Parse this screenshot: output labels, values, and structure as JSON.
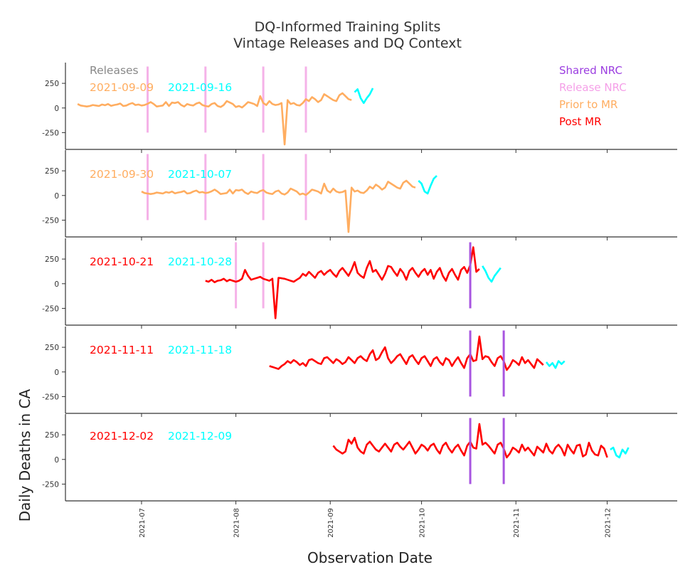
{
  "title_line1": "DQ-Informed Training Splits",
  "title_line2": "Vintage Releases and DQ Context",
  "ylabel": "Daily Deaths in CA",
  "xlabel": "Observation Date",
  "releases_heading": "Releases",
  "colors": {
    "prior": "#ffad60",
    "post": "#ff0000",
    "forecast": "#00ffff",
    "release_nrc": "#f5b2e8",
    "shared_nrc": "#a855e0",
    "heading": "#888888"
  },
  "legend": [
    {
      "label": "Shared NRC",
      "color": "#9b3de0"
    },
    {
      "label": "Release NRC",
      "color": "#f5a0e8"
    },
    {
      "label": "Prior to MR",
      "color": "#ffad60"
    },
    {
      "label": "Post MR",
      "color": "#ff0000"
    }
  ],
  "panels": [
    {
      "train_label": "2021-09-09",
      "test_label": "2021-09-16",
      "train_color": "#ffad60"
    },
    {
      "train_label": "2021-09-30",
      "test_label": "2021-10-07",
      "train_color": "#ffad60"
    },
    {
      "train_label": "2021-10-21",
      "test_label": "2021-10-28",
      "train_color": "#ff0000"
    },
    {
      "train_label": "2021-11-11",
      "test_label": "2021-11-18",
      "train_color": "#ff0000"
    },
    {
      "train_label": "2021-12-02",
      "test_label": "2021-12-09",
      "train_color": "#ff0000"
    }
  ],
  "chart_data": {
    "type": "line",
    "x_axis": {
      "type": "date",
      "range": [
        "2021-06-06",
        "2021-12-24"
      ],
      "ticks": [
        "2021-07",
        "2021-08",
        "2021-09",
        "2021-10",
        "2021-11",
        "2021-12"
      ],
      "tick_dates": [
        "2021-07-01",
        "2021-08-01",
        "2021-09-01",
        "2021-10-01",
        "2021-11-01",
        "2021-12-01"
      ]
    },
    "y_axis": {
      "ticks": [
        250,
        0,
        -250
      ],
      "range": [
        -420,
        460
      ]
    },
    "panels": [
      {
        "train_start": "2021-06-10",
        "train_end": "2021-09-08",
        "train_values": [
          40,
          25,
          20,
          15,
          20,
          30,
          25,
          20,
          35,
          28,
          40,
          22,
          30,
          35,
          45,
          20,
          25,
          40,
          50,
          30,
          35,
          25,
          30,
          42,
          60,
          40,
          15,
          20,
          25,
          60,
          20,
          55,
          50,
          60,
          30,
          15,
          40,
          30,
          25,
          45,
          55,
          30,
          20,
          15,
          40,
          50,
          20,
          10,
          30,
          70,
          55,
          40,
          10,
          20,
          5,
          30,
          60,
          50,
          40,
          20,
          120,
          50,
          30,
          70,
          40,
          30,
          35,
          50,
          -370,
          80,
          40,
          50,
          30,
          25,
          50,
          90,
          70,
          110,
          90,
          60,
          80,
          140,
          120,
          100,
          80,
          70,
          130,
          150,
          120,
          90,
          80
        ],
        "test_start": "2021-09-09",
        "test_end": "2021-09-15",
        "test_values": [
          160,
          190,
          100,
          50,
          100,
          140,
          200
        ],
        "release_nrc": [
          "2021-07-03",
          "2021-07-22",
          "2021-08-10",
          "2021-08-24"
        ],
        "shared_nrc": []
      },
      {
        "train_start": "2021-07-01",
        "train_end": "2021-09-29",
        "train_values": [
          40,
          25,
          20,
          15,
          20,
          30,
          25,
          20,
          35,
          28,
          40,
          22,
          30,
          35,
          45,
          20,
          25,
          40,
          50,
          30,
          35,
          25,
          30,
          42,
          60,
          40,
          15,
          20,
          25,
          60,
          20,
          55,
          50,
          60,
          30,
          15,
          40,
          30,
          25,
          45,
          55,
          30,
          20,
          15,
          40,
          50,
          20,
          10,
          30,
          70,
          55,
          40,
          10,
          20,
          5,
          30,
          60,
          50,
          40,
          20,
          120,
          50,
          30,
          70,
          40,
          30,
          35,
          50,
          -370,
          80,
          40,
          50,
          30,
          25,
          50,
          90,
          70,
          110,
          90,
          60,
          80,
          140,
          120,
          100,
          80,
          70,
          130,
          150,
          120,
          90,
          80
        ],
        "test_start": "2021-09-30",
        "test_end": "2021-10-06",
        "test_values": [
          150,
          120,
          40,
          20,
          100,
          170,
          200
        ],
        "release_nrc": [
          "2021-07-03",
          "2021-07-22",
          "2021-08-10",
          "2021-08-24"
        ],
        "shared_nrc": []
      },
      {
        "train_start": "2021-07-22",
        "train_end": "2021-10-20",
        "train_values": [
          30,
          20,
          40,
          15,
          30,
          35,
          50,
          25,
          40,
          30,
          20,
          30,
          50,
          140,
          80,
          40,
          50,
          60,
          70,
          50,
          40,
          30,
          50,
          -350,
          60,
          55,
          50,
          40,
          30,
          20,
          40,
          60,
          100,
          80,
          120,
          90,
          60,
          110,
          130,
          90,
          120,
          140,
          100,
          70,
          130,
          160,
          120,
          80,
          140,
          220,
          110,
          80,
          60,
          160,
          230,
          120,
          140,
          90,
          40,
          100,
          180,
          170,
          120,
          80,
          150,
          110,
          40,
          130,
          160,
          110,
          70,
          120,
          150,
          90,
          140,
          50,
          120,
          160,
          80,
          30,
          110,
          150,
          90,
          40,
          140,
          170,
          110,
          190,
          370,
          120,
          150
        ],
        "test_start": "2021-10-21",
        "test_end": "2021-10-27",
        "test_values": [
          180,
          130,
          60,
          20,
          80,
          120,
          160
        ],
        "release_nrc": [
          "2021-08-01",
          "2021-08-10"
        ],
        "shared_nrc": [
          "2021-10-17"
        ]
      },
      {
        "train_start": "2021-08-12",
        "train_end": "2021-11-10",
        "train_values": [
          60,
          50,
          40,
          30,
          60,
          80,
          110,
          90,
          120,
          100,
          70,
          90,
          60,
          120,
          130,
          110,
          90,
          80,
          140,
          150,
          120,
          90,
          130,
          110,
          80,
          100,
          150,
          120,
          90,
          140,
          160,
          130,
          110,
          180,
          220,
          120,
          140,
          200,
          250,
          140,
          90,
          120,
          160,
          180,
          130,
          80,
          150,
          170,
          120,
          80,
          140,
          160,
          110,
          60,
          130,
          150,
          100,
          70,
          140,
          120,
          60,
          110,
          150,
          90,
          40,
          140,
          180,
          110,
          120,
          360,
          130,
          160,
          150,
          100,
          60,
          140,
          160,
          110,
          20,
          60,
          120,
          100,
          70,
          150,
          90,
          120,
          80,
          40,
          130,
          100,
          70
        ],
        "test_start": "2021-11-11",
        "test_end": "2021-11-17",
        "test_values": [
          100,
          60,
          90,
          40,
          110,
          80,
          110
        ],
        "release_nrc": [],
        "shared_nrc": [
          "2021-10-17",
          "2021-10-28"
        ]
      },
      {
        "train_start": "2021-09-02",
        "train_end": "2021-12-01",
        "train_values": [
          140,
          100,
          80,
          60,
          80,
          200,
          160,
          220,
          120,
          80,
          60,
          150,
          180,
          140,
          100,
          80,
          120,
          160,
          120,
          80,
          150,
          170,
          130,
          100,
          140,
          180,
          120,
          60,
          100,
          150,
          130,
          90,
          140,
          160,
          100,
          60,
          140,
          170,
          110,
          70,
          120,
          150,
          90,
          40,
          140,
          180,
          120,
          110,
          360,
          150,
          170,
          140,
          100,
          60,
          150,
          170,
          110,
          20,
          60,
          120,
          100,
          70,
          150,
          90,
          120,
          80,
          40,
          130,
          100,
          70,
          160,
          90,
          60,
          120,
          150,
          110,
          40,
          150,
          100,
          60,
          140,
          150,
          30,
          50,
          170,
          90,
          50,
          40,
          140,
          110,
          20
        ],
        "test_start": "2021-12-02",
        "test_end": "2021-12-08",
        "test_values": [
          100,
          120,
          40,
          20,
          100,
          60,
          120
        ],
        "release_nrc": [],
        "shared_nrc": [
          "2021-10-17",
          "2021-10-28"
        ]
      }
    ]
  }
}
